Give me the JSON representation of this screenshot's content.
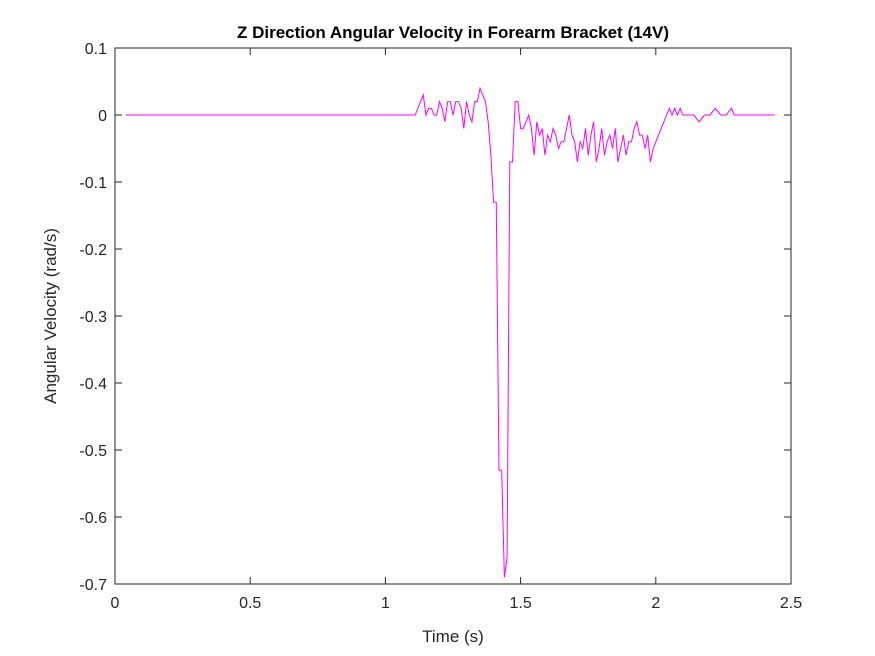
{
  "chart_data": {
    "type": "line",
    "title": "Z Direction Angular Velocity in Forearm Bracket (14V)",
    "xlabel": "Time (s)",
    "ylabel": "Angular Velocity (rad/s)",
    "xlim": [
      0,
      2.5
    ],
    "ylim": [
      -0.7,
      0.1
    ],
    "xticks": [
      "0",
      "0.5",
      "1",
      "1.5",
      "2",
      "2.5"
    ],
    "yticks": [
      "0.1",
      "0",
      "-0.1",
      "-0.2",
      "-0.3",
      "-0.4",
      "-0.5",
      "-0.6",
      "-0.7"
    ],
    "grid": false,
    "series": [
      {
        "color": "#ff00ff",
        "x": [
          0.04,
          1.11,
          1.12,
          1.13,
          1.14,
          1.15,
          1.16,
          1.17,
          1.18,
          1.19,
          1.2,
          1.21,
          1.22,
          1.23,
          1.24,
          1.25,
          1.26,
          1.27,
          1.28,
          1.29,
          1.3,
          1.31,
          1.32,
          1.33,
          1.34,
          1.35,
          1.36,
          1.37,
          1.38,
          1.39,
          1.4,
          1.41,
          1.42,
          1.43,
          1.44,
          1.45,
          1.46,
          1.47,
          1.48,
          1.49,
          1.5,
          1.51,
          1.52,
          1.53,
          1.54,
          1.55,
          1.56,
          1.57,
          1.58,
          1.59,
          1.6,
          1.61,
          1.62,
          1.63,
          1.64,
          1.65,
          1.66,
          1.67,
          1.68,
          1.69,
          1.7,
          1.71,
          1.72,
          1.73,
          1.74,
          1.75,
          1.76,
          1.77,
          1.78,
          1.79,
          1.8,
          1.81,
          1.82,
          1.83,
          1.84,
          1.85,
          1.86,
          1.87,
          1.88,
          1.89,
          1.9,
          1.91,
          1.92,
          1.93,
          1.94,
          1.95,
          1.96,
          1.97,
          1.98,
          1.99,
          2.0,
          2.01,
          2.02,
          2.03,
          2.04,
          2.05,
          2.06,
          2.07,
          2.08,
          2.09,
          2.1,
          2.12,
          2.14,
          2.16,
          2.18,
          2.2,
          2.22,
          2.24,
          2.26,
          2.28,
          2.29,
          2.3,
          2.44
        ],
        "y": [
          0.0,
          0.0,
          0.01,
          0.02,
          0.03,
          0.0,
          0.01,
          0.01,
          0.0,
          0.0,
          0.02,
          0.01,
          -0.01,
          0.02,
          0.02,
          0.0,
          0.02,
          0.02,
          0.01,
          -0.02,
          0.02,
          0.0,
          -0.01,
          0.02,
          0.02,
          0.04,
          0.03,
          0.02,
          -0.01,
          -0.06,
          -0.13,
          -0.13,
          -0.53,
          -0.53,
          -0.69,
          -0.66,
          -0.07,
          -0.07,
          0.02,
          0.02,
          -0.02,
          -0.02,
          -0.01,
          0.0,
          -0.02,
          -0.06,
          -0.01,
          -0.03,
          -0.02,
          -0.06,
          -0.03,
          -0.04,
          -0.02,
          -0.03,
          -0.05,
          -0.04,
          -0.04,
          -0.02,
          0.0,
          -0.03,
          -0.04,
          -0.07,
          -0.04,
          -0.05,
          -0.02,
          -0.06,
          -0.03,
          -0.01,
          -0.07,
          -0.05,
          -0.02,
          -0.06,
          -0.04,
          -0.03,
          -0.05,
          -0.02,
          -0.07,
          -0.05,
          -0.03,
          -0.06,
          -0.04,
          -0.04,
          -0.02,
          -0.01,
          -0.03,
          -0.03,
          -0.05,
          -0.03,
          -0.07,
          -0.05,
          -0.04,
          -0.03,
          -0.02,
          -0.01,
          0.0,
          0.01,
          0.0,
          0.01,
          0.0,
          0.01,
          0.0,
          0.0,
          0.0,
          -0.01,
          0.0,
          0.0,
          0.01,
          0.0,
          0.0,
          0.01,
          0.0,
          0.0,
          0.0
        ]
      }
    ]
  }
}
